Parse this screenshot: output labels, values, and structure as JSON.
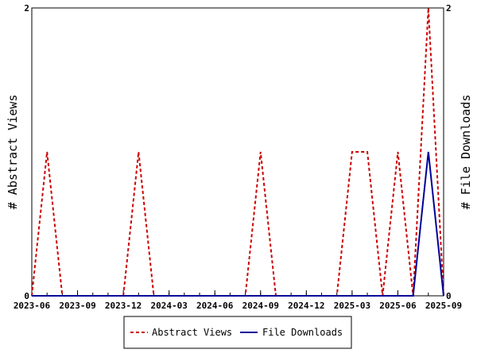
{
  "chart_data": {
    "type": "line",
    "x": [
      "2023-06",
      "2023-07",
      "2023-08",
      "2023-09",
      "2023-10",
      "2023-11",
      "2023-12",
      "2024-01",
      "2024-02",
      "2024-03",
      "2024-04",
      "2024-05",
      "2024-06",
      "2024-07",
      "2024-08",
      "2024-09",
      "2024-10",
      "2024-11",
      "2024-12",
      "2025-01",
      "2025-02",
      "2025-03",
      "2025-04",
      "2025-05",
      "2025-06",
      "2025-07",
      "2025-08",
      "2025-09"
    ],
    "x_tick_labels": [
      "2023-06",
      "2023-09",
      "2023-12",
      "2024-03",
      "2024-06",
      "2024-09",
      "2024-12",
      "2025-03",
      "2025-06",
      "2025-09"
    ],
    "series": [
      {
        "name": "Abstract Views",
        "axis": "left",
        "color": "#cc0000",
        "style": "dashed",
        "values": [
          0,
          1,
          0,
          0,
          0,
          0,
          0,
          1,
          0,
          0,
          0,
          0,
          0,
          0,
          0,
          1,
          0,
          0,
          0,
          0,
          0,
          1,
          1,
          0,
          1,
          0,
          2,
          0
        ]
      },
      {
        "name": "File Downloads",
        "axis": "right",
        "color": "#000099",
        "style": "solid",
        "values": [
          0,
          0,
          0,
          0,
          0,
          0,
          0,
          0,
          0,
          0,
          0,
          0,
          0,
          0,
          0,
          0,
          0,
          0,
          0,
          0,
          0,
          0,
          0,
          0,
          0,
          0,
          1,
          0
        ]
      }
    ],
    "ylabel_left": "# Abstract Views",
    "ylabel_right": "# File Downloads",
    "ylim_left": [
      0,
      2
    ],
    "ylim_right": [
      0,
      2
    ],
    "y_ticks_left": [
      "0",
      "2"
    ],
    "y_ticks_right": [
      "0",
      "2"
    ],
    "grid": false,
    "legend": "bottom-center"
  },
  "legend": {
    "abstract_views": "Abstract Views",
    "file_downloads": "File Downloads"
  }
}
